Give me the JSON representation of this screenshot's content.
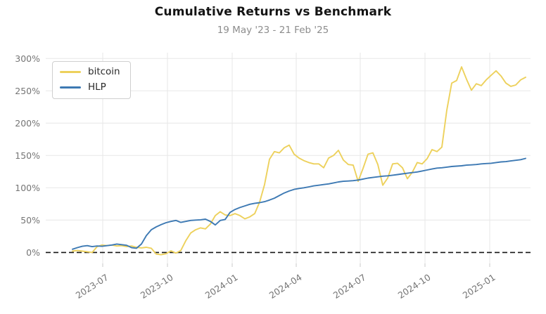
{
  "header": {
    "title": "Cumulative Returns vs Benchmark",
    "subtitle": "19 May '23 - 21 Feb '25"
  },
  "legend": {
    "items": [
      {
        "label": "bitcoin",
        "color": "#edd15c"
      },
      {
        "label": "HLP",
        "color": "#3d79b3"
      }
    ]
  },
  "chart_data": {
    "type": "line",
    "title": "Cumulative Returns vs Benchmark",
    "subtitle": "19 May '23 - 21 Feb '25",
    "start_date": "2023-05-19",
    "end_date": "2025-02-21",
    "sample_interval_days": 7,
    "y_unit": "%",
    "ylim": [
      -17,
      309
    ],
    "y_ticks": [
      0,
      50,
      100,
      150,
      200,
      250,
      300
    ],
    "x_ticks": [
      {
        "label": "2023-07",
        "day": 43
      },
      {
        "label": "2023-10",
        "day": 135
      },
      {
        "label": "2024-01",
        "day": 227
      },
      {
        "label": "2024-04",
        "day": 318
      },
      {
        "label": "2024-07",
        "day": 409
      },
      {
        "label": "2024-10",
        "day": 501
      },
      {
        "label": "2025-01",
        "day": 593
      }
    ],
    "grid": true,
    "zero_line": true,
    "legend_position": "top-left",
    "colors": {
      "grid": "#e7e7e7",
      "tick_label": "#757575",
      "zero_line": "#141414",
      "tick_mark": "#c9c9c9"
    },
    "series": [
      {
        "name": "bitcoin",
        "color": "#edd15c",
        "values": [
          2,
          3,
          2,
          1,
          0,
          9,
          11.5,
          10.5,
          11.5,
          10,
          10.5,
          9,
          10,
          8,
          7,
          8,
          6.5,
          -2.5,
          -3.5,
          -2,
          2.5,
          -1,
          3,
          18,
          30,
          35,
          38,
          36.5,
          44,
          57,
          63,
          58,
          57,
          60,
          57,
          52,
          55,
          60,
          78,
          105,
          144,
          156,
          154,
          162,
          166,
          152,
          146,
          142,
          139,
          137,
          137,
          131,
          146,
          150,
          158,
          143,
          136,
          135,
          110,
          130,
          152,
          154,
          136,
          104,
          115,
          137,
          138,
          131,
          114,
          124,
          139,
          137,
          145,
          159,
          156,
          163,
          220,
          262,
          266,
          287,
          268,
          251,
          261,
          258,
          267,
          274,
          281,
          273,
          262,
          257,
          259,
          267,
          271
        ]
      },
      {
        "name": "HLP",
        "color": "#3d79b3",
        "values": [
          5,
          7.5,
          9.5,
          10.5,
          9,
          10,
          9.5,
          10.5,
          11.5,
          13,
          12,
          11,
          7.5,
          6.5,
          13,
          26,
          35,
          39.5,
          43,
          46,
          48,
          49.5,
          46.5,
          48,
          49.5,
          50,
          50.5,
          51.5,
          48,
          42.5,
          49.5,
          51,
          62,
          66.5,
          69.5,
          72,
          74.5,
          76,
          77,
          78.5,
          81,
          84,
          88,
          92,
          95,
          97.5,
          99,
          100,
          101.5,
          103,
          104,
          105,
          106,
          107.5,
          109,
          110,
          110.5,
          111,
          112,
          113.5,
          115,
          116,
          117,
          118,
          118.5,
          119.5,
          120.5,
          121.5,
          122.5,
          123.5,
          124.5,
          126,
          127.5,
          129,
          130.5,
          131,
          132,
          133,
          133.5,
          134,
          135,
          135.5,
          136,
          137,
          137.5,
          138,
          139,
          140,
          140.5,
          141.5,
          142.5,
          143.5,
          145.5
        ]
      }
    ]
  }
}
